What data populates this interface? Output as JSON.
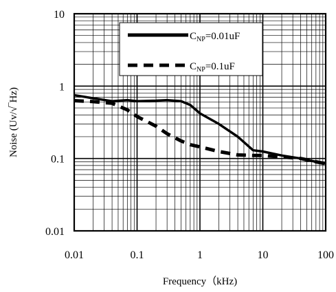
{
  "chart_data": {
    "type": "line",
    "xlabel": "Frequency（kHz)",
    "ylabel": "Noise (Uv/√‾Hz)",
    "x_scale": "log",
    "y_scale": "log",
    "xlim": [
      0.01,
      100
    ],
    "ylim": [
      0.01,
      10
    ],
    "x_ticks": [
      {
        "value": 0.01,
        "label": "0.01"
      },
      {
        "value": 0.1,
        "label": "0.1"
      },
      {
        "value": 1,
        "label": "1"
      },
      {
        "value": 10,
        "label": "10"
      },
      {
        "value": 100,
        "label": "100"
      }
    ],
    "y_ticks": [
      {
        "value": 0.01,
        "label": "0.01"
      },
      {
        "value": 0.1,
        "label": "0.1"
      },
      {
        "value": 1,
        "label": "1"
      },
      {
        "value": 10,
        "label": "10"
      }
    ],
    "grid": true,
    "legend_position": "top-right",
    "series": [
      {
        "name_main": "C",
        "name_sub": "NP",
        "name_rest": "=0.01uF",
        "style": "solid",
        "x": [
          0.01,
          0.02,
          0.04,
          0.07,
          0.1,
          0.2,
          0.3,
          0.5,
          0.7,
          1,
          2,
          4,
          7,
          10,
          20,
          40,
          70,
          100
        ],
        "y": [
          0.75,
          0.68,
          0.62,
          0.64,
          0.62,
          0.63,
          0.64,
          0.62,
          0.55,
          0.42,
          0.3,
          0.2,
          0.13,
          0.125,
          0.11,
          0.1,
          0.09,
          0.085
        ]
      },
      {
        "name_main": "C",
        "name_sub": "NP",
        "name_rest": "=0.1uF",
        "style": "dashed",
        "x": [
          0.01,
          0.02,
          0.04,
          0.07,
          0.1,
          0.2,
          0.3,
          0.5,
          0.7,
          1,
          2,
          4,
          7,
          10,
          20,
          40,
          70,
          100
        ],
        "y": [
          0.63,
          0.61,
          0.58,
          0.47,
          0.38,
          0.28,
          0.22,
          0.175,
          0.155,
          0.145,
          0.125,
          0.112,
          0.11,
          0.11,
          0.105,
          0.1,
          0.09,
          0.085
        ]
      }
    ]
  }
}
